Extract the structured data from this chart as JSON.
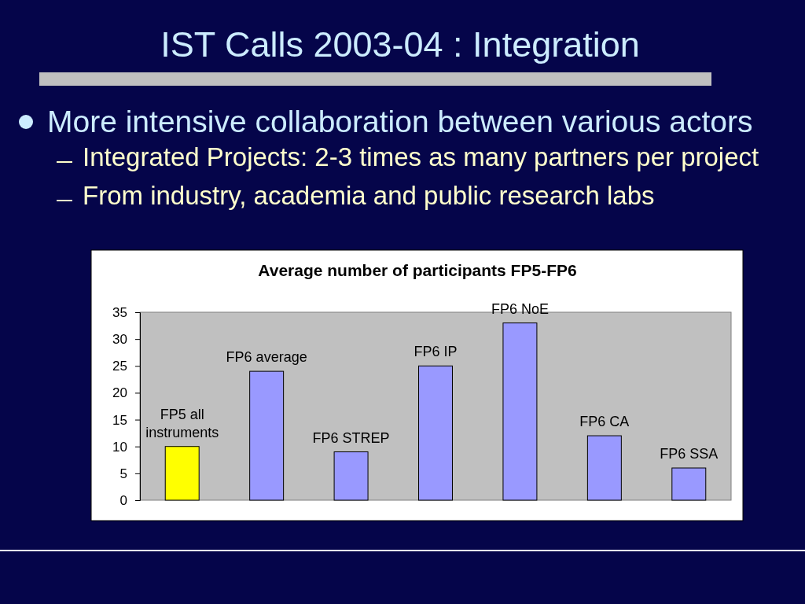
{
  "chart_data": {
    "type": "bar",
    "title": "IST Calls 2003-04 : Integration",
    "subtitle": "Average number of participants FP5-FP6",
    "annotations": [
      "More intensive collaboration between various actors",
      "Integrated Projects: 2-3 times as many partners per project",
      "From industry, academia and public research labs"
    ],
    "categories": [
      "FP5 all instruments",
      "FP6 average",
      "FP6 STREP",
      "FP6 IP",
      "FP6 NoE",
      "FP6 CA",
      "FP6 SSA"
    ],
    "values": [
      10,
      24,
      9,
      25,
      33,
      12,
      6
    ],
    "colors": [
      "#ffff00",
      "#9999ff",
      "#9999ff",
      "#9999ff",
      "#9999ff",
      "#9999ff",
      "#9999ff"
    ],
    "ylim": [
      0,
      35
    ],
    "yticks": [
      0,
      5,
      10,
      15,
      20,
      25,
      30,
      35
    ]
  }
}
